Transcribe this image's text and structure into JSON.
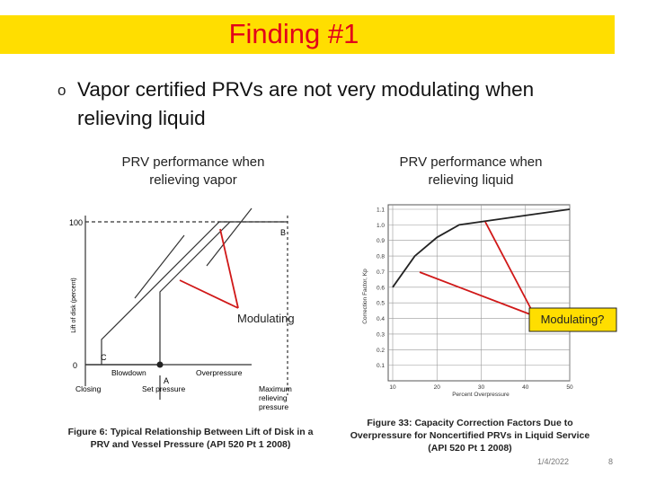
{
  "header": {
    "title": "Finding #1"
  },
  "bullets": [
    {
      "marker": "o",
      "text": "Vapor certified PRVs are not very modulating when relieving liquid"
    }
  ],
  "left_figure": {
    "heading": "PRV performance when relieving vapor",
    "y_axis_label": "Lift of disk (percent)",
    "tick_top": "100",
    "tick_bottom": "0",
    "point_b": "B",
    "point_c": "C",
    "point_a": "A",
    "closing": "Closing",
    "blowdown": "Blowdown",
    "overpressure": "Overpressure",
    "set_pressure": "Set pressure",
    "max_pressure": "Maximum relieving pressure",
    "annotation": "Modulating",
    "caption": "Figure 6: Typical Relationship Between Lift of Disk in a PRV and Vessel Pressure (API 520 Pt 1 2008)"
  },
  "right_figure": {
    "heading": "PRV performance when relieving liquid",
    "chart": {
      "type": "line",
      "x_label": "Percent Overpressure",
      "y_label": "Correction Factor, Kp",
      "x": [
        10,
        15,
        20,
        25,
        30,
        40,
        50
      ],
      "values": [
        0.6,
        0.8,
        0.92,
        1.0,
        1.02,
        1.06,
        1.1
      ],
      "xlim": [
        10,
        50
      ],
      "ylim": [
        0,
        1.1
      ],
      "xticks": [
        10,
        20,
        30,
        40,
        50
      ],
      "yticks": [
        0.1,
        0.2,
        0.3,
        0.4,
        0.5,
        0.6,
        0.7,
        0.8,
        0.9,
        {
          "value": 1,
          "label": "1.0"
        },
        1.1
      ],
      "grid": true,
      "color": "#222222"
    },
    "annotation": "Modulating?",
    "caption": "Figure 33: Capacity Correction Factors Due to Overpressure for Noncertified PRVs in Liquid Service (API 520 Pt 1 2008)"
  },
  "footer": {
    "date": "1/4/2022",
    "page": "8"
  }
}
